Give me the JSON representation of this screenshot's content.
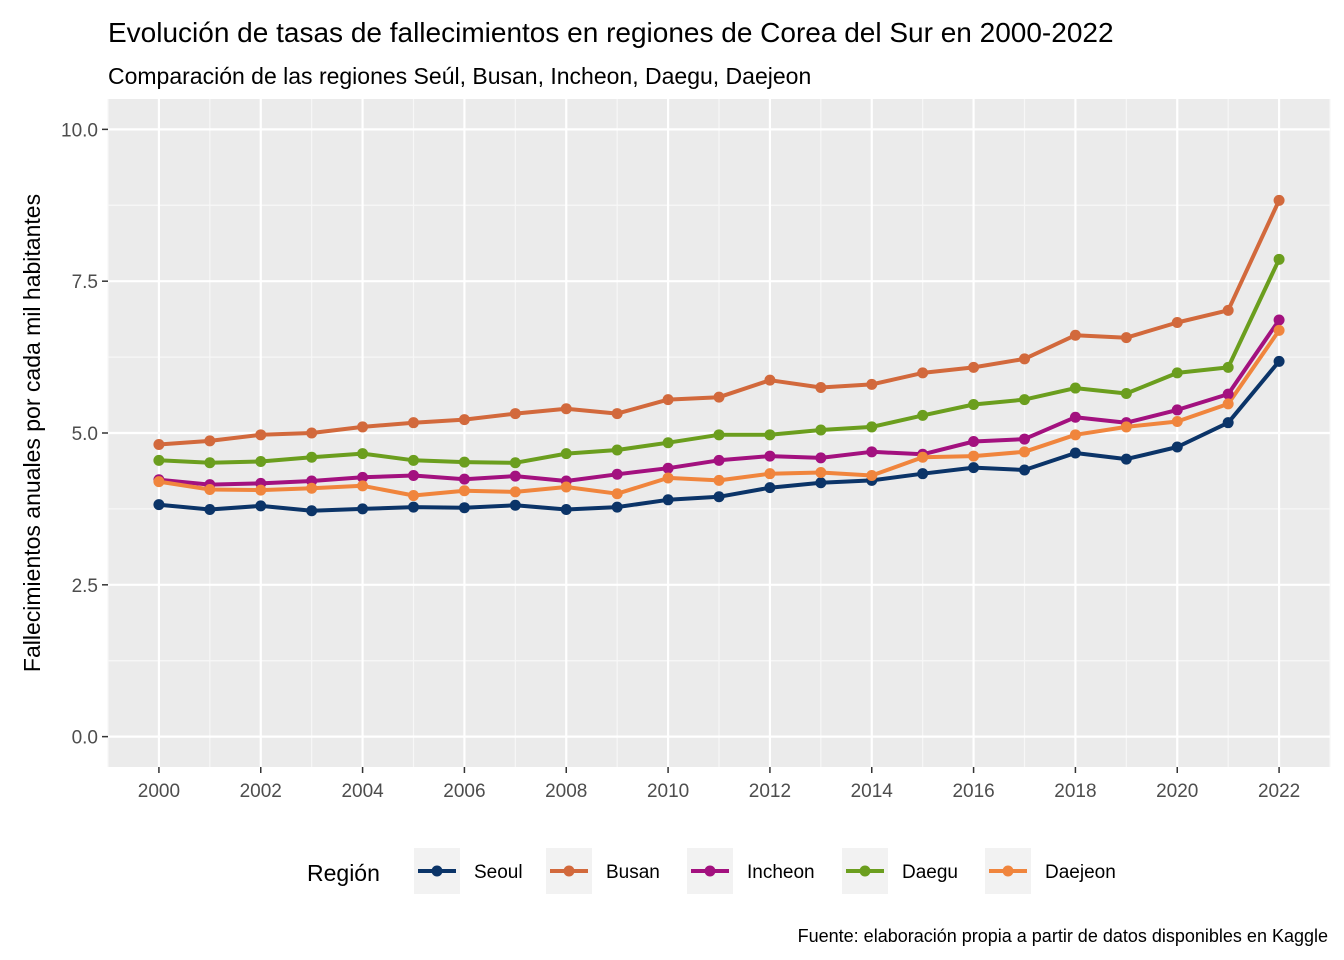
{
  "chart_data": {
    "type": "line",
    "title": "Evolución de tasas de fallecimientos en regiones de Corea del Sur en 2000-2022",
    "subtitle": "Comparación de las regiones Seúl, Busan, Incheon, Daegu, Daejeon",
    "xlabel": "",
    "ylabel": "Fallecimientos anuales por cada mil habitantes",
    "caption": "Fuente: elaboración propia a partir de datos disponibles en Kaggle",
    "xlim": [
      1999,
      2023
    ],
    "ylim": [
      -0.5,
      10.5
    ],
    "x_ticks": [
      2000,
      2002,
      2004,
      2006,
      2008,
      2010,
      2012,
      2014,
      2016,
      2018,
      2020,
      2022
    ],
    "x_tick_labels": [
      "2000",
      "2002",
      "2004",
      "2006",
      "2008",
      "2010",
      "2012",
      "2014",
      "2016",
      "2018",
      "2020",
      "2022"
    ],
    "y_ticks": [
      0,
      2.5,
      5,
      7.5,
      10
    ],
    "y_tick_labels": [
      "0.0",
      "2.5",
      "5.0",
      "7.5",
      "10.0"
    ],
    "grid": true,
    "legend": {
      "title": "Región",
      "position": "bottom"
    },
    "x": [
      2000,
      2001,
      2002,
      2003,
      2004,
      2005,
      2006,
      2007,
      2008,
      2009,
      2010,
      2011,
      2012,
      2013,
      2014,
      2015,
      2016,
      2017,
      2018,
      2019,
      2020,
      2021,
      2022
    ],
    "series": [
      {
        "name": "Seoul",
        "color": "#0b3468",
        "values": [
          3.82,
          3.74,
          3.8,
          3.72,
          3.75,
          3.78,
          3.77,
          3.81,
          3.74,
          3.78,
          3.9,
          3.95,
          4.1,
          4.18,
          4.22,
          4.33,
          4.43,
          4.39,
          4.67,
          4.57,
          4.77,
          5.17,
          6.18
        ]
      },
      {
        "name": "Busan",
        "color": "#d2693c",
        "values": [
          4.81,
          4.87,
          4.97,
          5.0,
          5.1,
          5.17,
          5.22,
          5.32,
          5.4,
          5.32,
          5.55,
          5.59,
          5.87,
          5.75,
          5.8,
          5.99,
          6.08,
          6.22,
          6.61,
          6.57,
          6.82,
          7.02,
          8.83
        ]
      },
      {
        "name": "Incheon",
        "color": "#a3117f",
        "values": [
          4.23,
          4.15,
          4.17,
          4.21,
          4.27,
          4.3,
          4.24,
          4.29,
          4.21,
          4.32,
          4.42,
          4.55,
          4.62,
          4.59,
          4.69,
          4.65,
          4.86,
          4.9,
          5.26,
          5.17,
          5.38,
          5.64,
          6.86
        ]
      },
      {
        "name": "Daegu",
        "color": "#6b9e1e",
        "values": [
          4.55,
          4.51,
          4.53,
          4.6,
          4.66,
          4.55,
          4.52,
          4.51,
          4.66,
          4.72,
          4.84,
          4.97,
          4.97,
          5.05,
          5.1,
          5.29,
          5.47,
          5.55,
          5.74,
          5.65,
          5.99,
          6.08,
          7.86
        ]
      },
      {
        "name": "Daejeon",
        "color": "#f0853d",
        "values": [
          4.2,
          4.07,
          4.06,
          4.09,
          4.13,
          3.97,
          4.05,
          4.03,
          4.11,
          4.0,
          4.26,
          4.22,
          4.33,
          4.35,
          4.3,
          4.6,
          4.62,
          4.69,
          4.97,
          5.1,
          5.19,
          5.48,
          6.69
        ]
      }
    ]
  }
}
